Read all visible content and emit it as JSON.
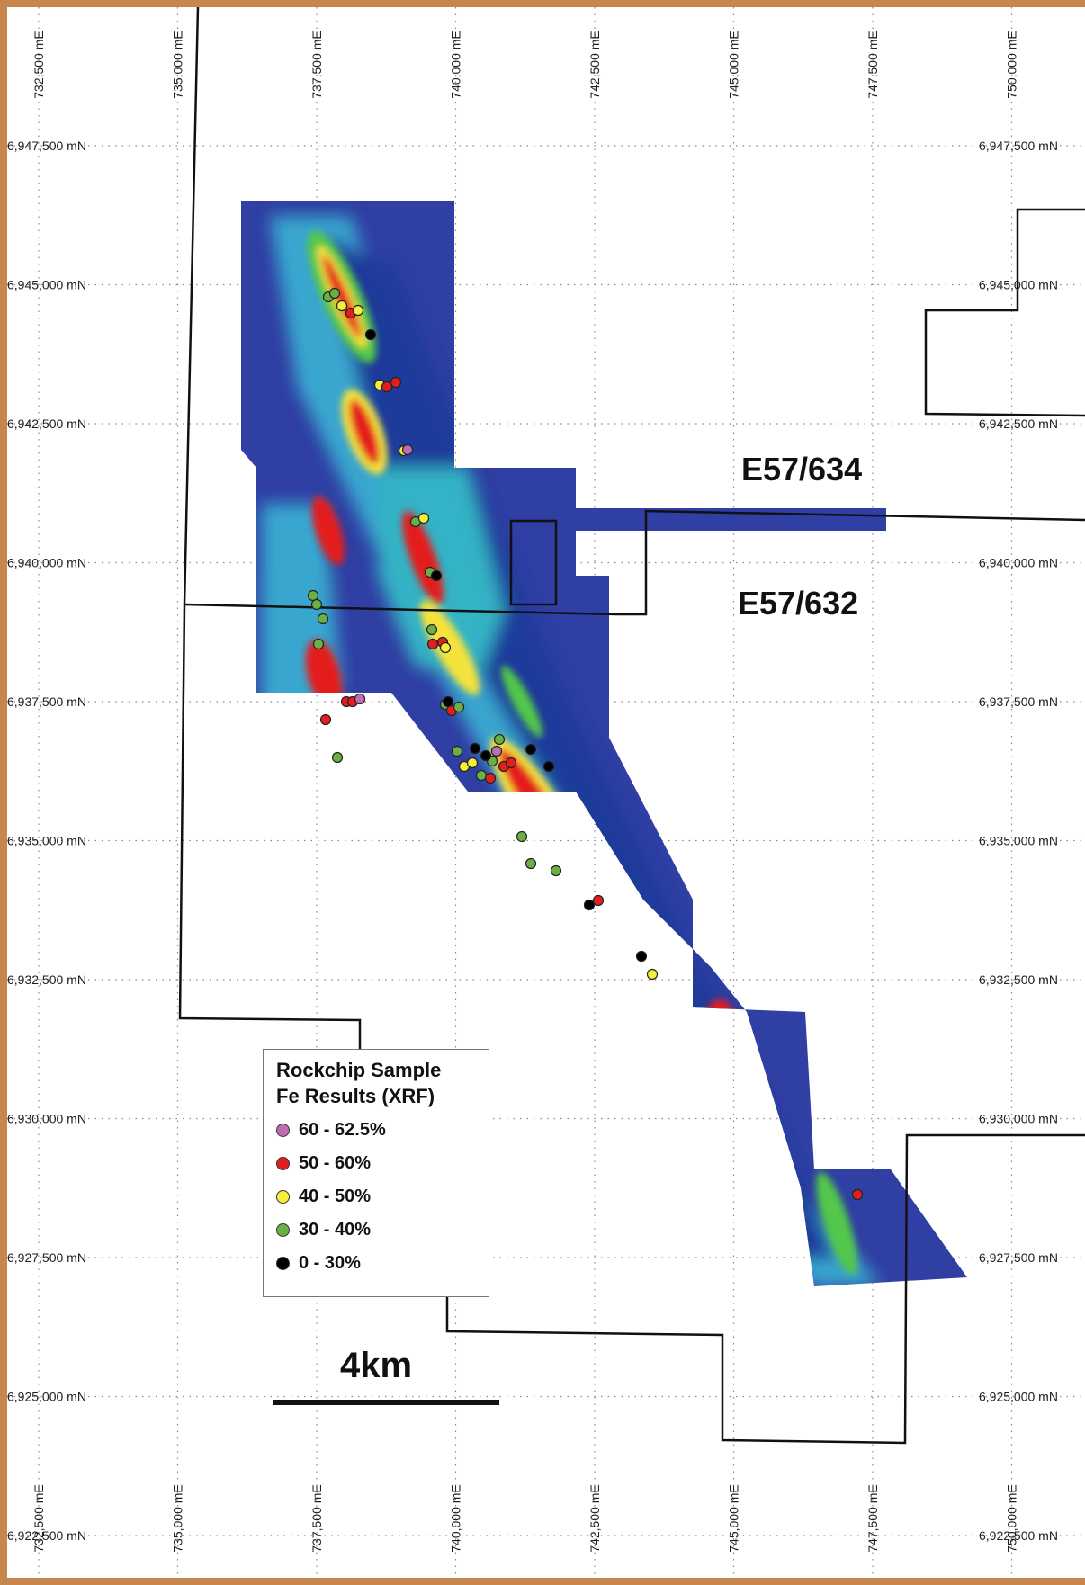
{
  "map": {
    "easting_labels": [
      "732,500 mE",
      "735,000 mE",
      "737,500 mE",
      "740,000 mE",
      "742,500 mE",
      "745,000 mE",
      "747,500 mE",
      "750,000 mE"
    ],
    "northing_labels": [
      "6,947,500 mN",
      "6,945,000 mN",
      "6,942,500 mN",
      "6,940,000 mN",
      "6,937,500 mN",
      "6,935,000 mN",
      "6,932,500 mN",
      "6,930,000 mN",
      "6,927,500 mN",
      "6,925,000 mN",
      "6,922,500 mN"
    ],
    "tenements": [
      {
        "id": "E57/634"
      },
      {
        "id": "E57/632"
      }
    ]
  },
  "legend": {
    "title_line1": "Rockchip Sample",
    "title_line2": "Fe Results (XRF)",
    "items": [
      {
        "label": "60 - 62.5%",
        "color": "#c06cb4"
      },
      {
        "label": "50 - 60%",
        "color": "#e41e1e"
      },
      {
        "label": "40 - 50%",
        "color": "#f5ee3a"
      },
      {
        "label": "30 - 40%",
        "color": "#6ab045"
      },
      {
        "label": "0 - 30%",
        "color": "#000000"
      }
    ]
  },
  "scale_bar": {
    "label": "4km"
  },
  "colors": {
    "frame": "#c7864b",
    "low": "#2f3fa3",
    "mid": "#36b9d6",
    "high": "#e41e1e"
  }
}
